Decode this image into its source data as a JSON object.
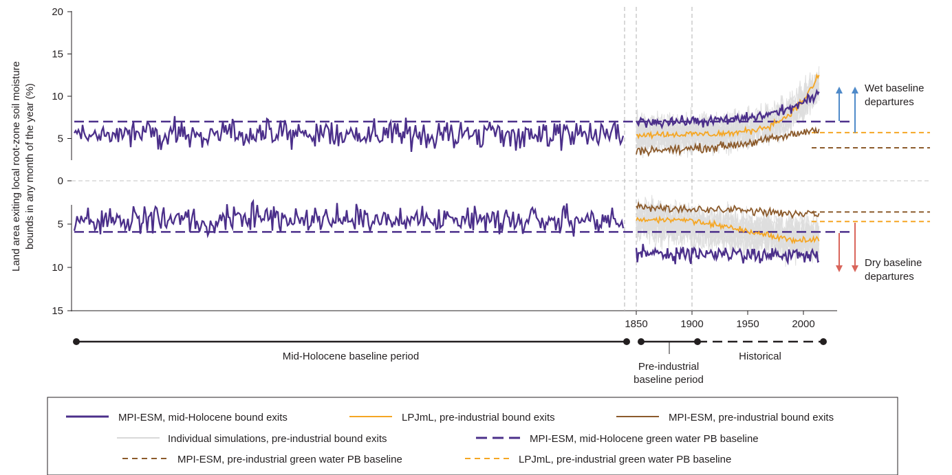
{
  "chart_data": {
    "type": "line",
    "ylabel_lines": [
      "Land area exiting local root-zone soil moisture",
      "bounds in any month of the year (%)"
    ],
    "upper_yticks": [
      "20",
      "15",
      "10",
      "5",
      "0"
    ],
    "lower_yticks": [
      "5",
      "10",
      "15"
    ],
    "upper_ylim": [
      0,
      20
    ],
    "lower_ylim": [
      0,
      15
    ],
    "xticks": [
      "1850",
      "1900",
      "1950",
      "2000"
    ],
    "xlim_industrial": [
      1850,
      2015
    ],
    "periods": [
      {
        "label_lines": [
          "Mid-Holocene baseline period"
        ],
        "style": "solid"
      },
      {
        "label_lines": [
          "Pre-industrial",
          "baseline period"
        ],
        "style": "solid"
      },
      {
        "label_lines": [
          "Historical"
        ],
        "style": "dashed"
      }
    ],
    "annotations": {
      "wet": [
        "Wet baseline",
        "departures"
      ],
      "dry": [
        "Dry baseline",
        "departures"
      ]
    },
    "baselines": {
      "mpi_holocene_wet": 7.0,
      "mpi_holocene_dry": 5.9,
      "lpjml_preind_wet": 5.7,
      "lpjml_preind_dry": 4.7,
      "mpi_preind_wet": 3.9,
      "mpi_preind_dry": 3.6
    },
    "series": [
      {
        "name": "MPI-ESM, mid-Holocene bound exits",
        "color": "#4b2f8a",
        "style": "solid",
        "wet_mean": 5.5,
        "dry_mean": 4.5
      },
      {
        "name": "LPJmL, pre-industrial bound exits",
        "color": "#f5a623",
        "style": "solid",
        "wet_start": 5.5,
        "wet_end": 12.5,
        "dry_start": 4.5,
        "dry_end": 6.8
      },
      {
        "name": "MPI-ESM, pre-industrial bound exits",
        "color": "#8b5a2b",
        "style": "solid",
        "wet_start": 3.6,
        "wet_end": 6.2,
        "dry_start": 3.0,
        "dry_end": 3.9
      },
      {
        "name": "Individual simulations, pre-industrial bound exits",
        "color": "#d9d9d9",
        "style": "solid"
      },
      {
        "name": "MPI-ESM, mid-Holocene green water PB baseline",
        "color": "#4b2f8a",
        "style": "dashed"
      },
      {
        "name": "MPI-ESM, pre-industrial green water PB baseline",
        "color": "#8b5a2b",
        "style": "dashed"
      },
      {
        "name": "LPJmL, pre-industrial green water PB baseline",
        "color": "#f5a623",
        "style": "dashed"
      }
    ],
    "industrial_wet_mpi": {
      "start": 7.0,
      "end": 10.2
    },
    "industrial_dry_mpi": {
      "start": 8.5,
      "end": 8.6
    },
    "colors": {
      "wet_arrow": "#4f8ac9",
      "dry_arrow": "#d9655b",
      "grid_dashed": "#bdbdbd"
    }
  }
}
